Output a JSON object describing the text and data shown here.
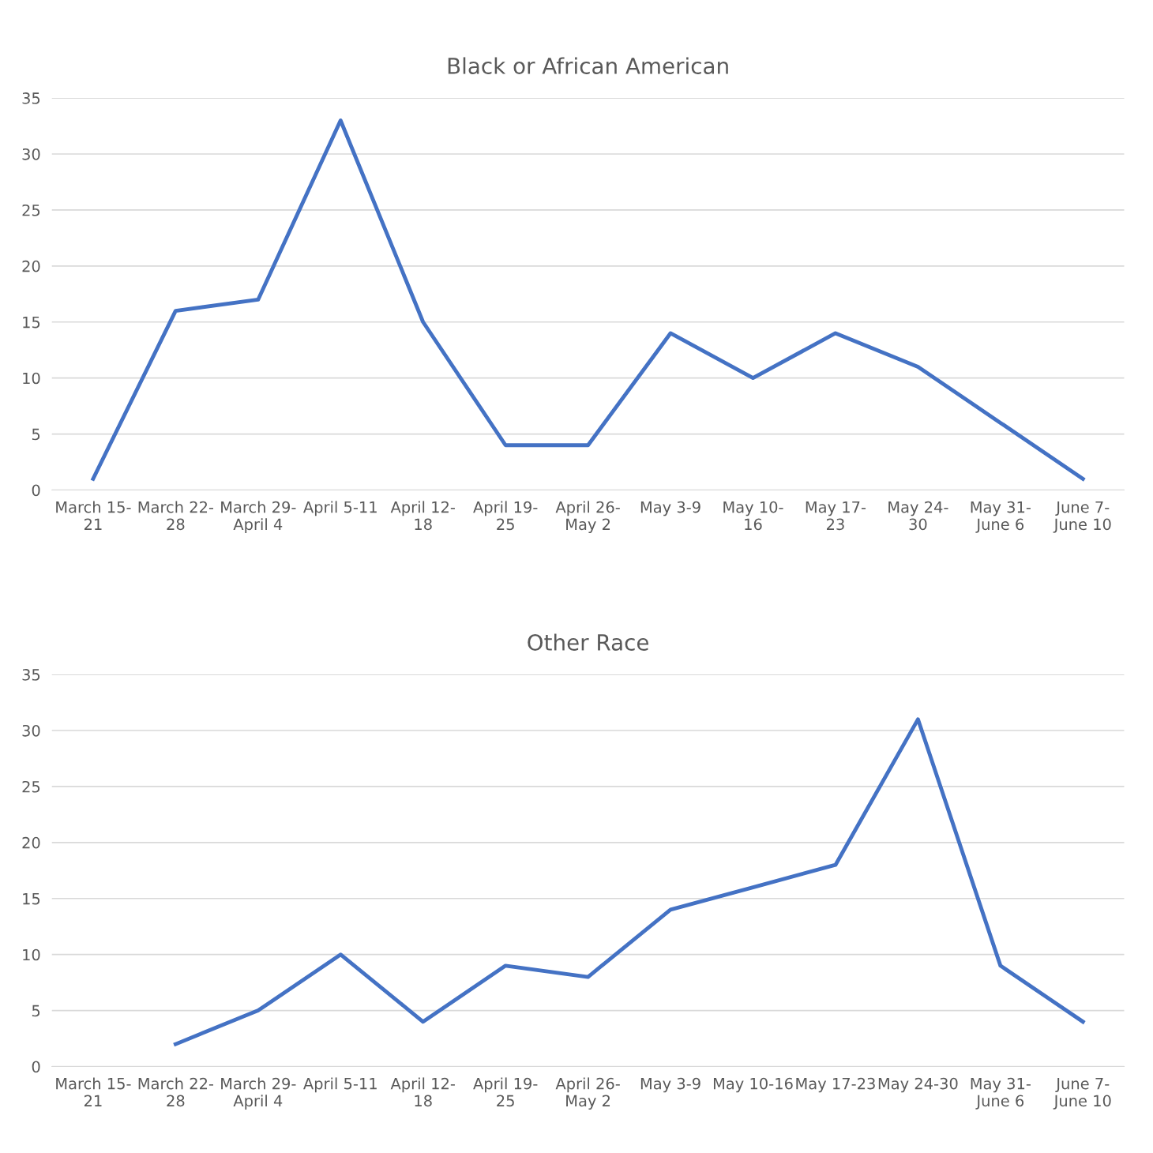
{
  "chart_data": [
    {
      "type": "line",
      "title": "Black or African American",
      "categories": [
        "March 15-\n21",
        "March 22-\n28",
        "March 29-\nApril 4",
        "April 5-11",
        "April 12-\n18",
        "April 19-\n25",
        "April 26-\nMay 2",
        "May 3-9",
        "May 10-\n16",
        "May 17-\n23",
        "May 24-\n30",
        "May 31-\nJune 6",
        "June 7-\nJune 10"
      ],
      "series": [
        {
          "color": "#4472c4",
          "values": [
            1,
            16,
            17,
            33,
            15,
            4,
            4,
            14,
            10,
            14,
            11,
            6,
            1
          ]
        }
      ],
      "ylim": [
        0,
        35
      ],
      "yticks": [
        0,
        5,
        10,
        15,
        20,
        25,
        30,
        35
      ],
      "grid": "y",
      "legend": false,
      "marker": "none",
      "line_style": "solid"
    },
    {
      "type": "line",
      "title": "Other Race",
      "categories": [
        "March 15-\n21",
        "March 22-\n28",
        "March 29-\nApril 4",
        "April 5-11",
        "April 12-\n18",
        "April 19-\n25",
        "April 26-\nMay 2",
        "May 3-9",
        "May 10-16",
        "May 17-23",
        "May 24-30",
        "May 31-\nJune 6",
        "June 7-\nJune 10"
      ],
      "series": [
        {
          "color": "#4472c4",
          "values": [
            null,
            2,
            5,
            10,
            4,
            9,
            8,
            14,
            16,
            18,
            31,
            9,
            4
          ]
        }
      ],
      "ylim": [
        0,
        35
      ],
      "yticks": [
        0,
        5,
        10,
        15,
        20,
        25,
        30,
        35
      ],
      "grid": "y",
      "legend": false,
      "marker": "none",
      "line_style": "solid"
    }
  ]
}
